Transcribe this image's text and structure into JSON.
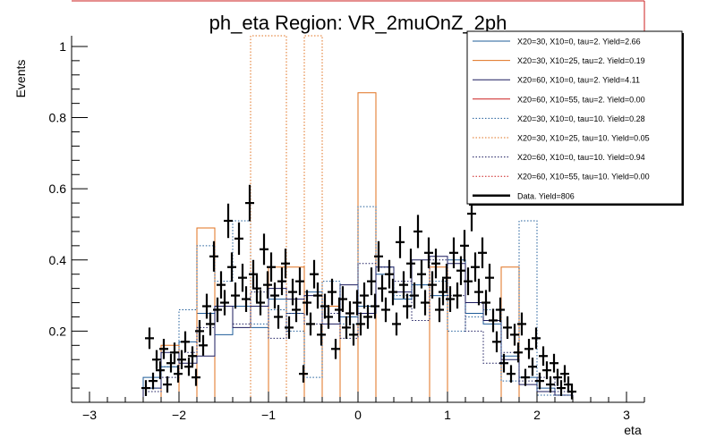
{
  "chart_data": {
    "type": "histogram",
    "title": "ph_eta Region: VR_2muOnZ_2ph",
    "xlabel": "eta",
    "ylabel": "Events",
    "xlim": [
      -3.2,
      3.2
    ],
    "ylim": [
      0,
      1.03
    ],
    "x_ticks": [
      "−3",
      "−2",
      "−1",
      "0",
      "1",
      "2",
      "3"
    ],
    "x_tick_values": [
      -3,
      -2,
      -1,
      0,
      1,
      2,
      3
    ],
    "y_ticks": [
      "0.2",
      "0.4",
      "0.6",
      "0.8",
      "1"
    ],
    "y_tick_values": [
      0.2,
      0.4,
      0.6,
      0.8,
      1
    ],
    "bin_edges": [
      -2.4,
      -2.2,
      -2.0,
      -1.8,
      -1.6,
      -1.4,
      -1.2,
      -1.0,
      -0.8,
      -0.6,
      -0.4,
      -0.2,
      0.0,
      0.2,
      0.4,
      0.6,
      0.8,
      1.0,
      1.2,
      1.4,
      1.6,
      1.8,
      2.0,
      2.2,
      2.4
    ],
    "legend_position": "top-right",
    "series": [
      {
        "name": "X20=30, X10=0, tau=2. Yield=2.66",
        "color": "#1f5c99",
        "dash": "solid",
        "values": [
          0.07,
          0.1,
          0.17,
          0.25,
          0.19,
          0.27,
          0.21,
          0.29,
          0.25,
          0.31,
          0.27,
          0.24,
          0.27,
          0.36,
          0.29,
          0.33,
          0.3,
          0.4,
          0.25,
          0.22,
          0.13,
          0.07,
          0.04,
          0.02
        ]
      },
      {
        "name": "X20=30, X10=25, tau=2. Yield=0.19",
        "color": "#e0701e",
        "dash": "solid",
        "values": [
          0.0,
          0.16,
          0.0,
          0.49,
          0.0,
          0.0,
          0.0,
          0.38,
          0.38,
          0.0,
          0.27,
          0.0,
          0.87,
          0.0,
          0.0,
          0.0,
          0.38,
          0.0,
          0.0,
          0.0,
          0.38,
          0.0,
          0.0,
          0.0
        ]
      },
      {
        "name": "X20=60, X10=0, tau=2. Yield=4.11",
        "color": "#1a1a5e",
        "dash": "solid",
        "values": [
          0.04,
          0.14,
          0.11,
          0.13,
          0.27,
          0.21,
          0.27,
          0.32,
          0.29,
          0.3,
          0.22,
          0.33,
          0.25,
          0.38,
          0.31,
          0.4,
          0.41,
          0.39,
          0.28,
          0.23,
          0.12,
          0.05,
          0.03,
          0.02
        ]
      },
      {
        "name": "X20=60, X10=55, tau=2. Yield=0.00",
        "color": "#cc1f1f",
        "dash": "solid",
        "values": [
          0,
          0,
          0,
          0,
          0,
          0,
          0,
          0,
          0,
          0,
          0,
          0,
          0,
          0,
          0,
          0,
          0,
          0,
          0,
          0,
          0,
          0,
          0,
          0
        ]
      },
      {
        "name": "X20=30, X10=0, tau=10. Yield=0.28",
        "color": "#1f5c99",
        "dash": "dotted",
        "values": [
          0.04,
          0.1,
          0.26,
          0.44,
          0.34,
          0.51,
          0.22,
          0.26,
          0.2,
          0.07,
          0.34,
          0.22,
          0.55,
          0.38,
          0.3,
          0.33,
          0.34,
          0.2,
          0.24,
          0.26,
          0.06,
          0.51,
          0.02,
          0.02
        ]
      },
      {
        "name": "X20=30, X10=25, tau=10. Yield=0.05",
        "color": "#e0701e",
        "dash": "dotted",
        "values": [
          0.0,
          0.0,
          0.0,
          0.0,
          0.0,
          0.0,
          1.03,
          1.03,
          0.0,
          1.03,
          0.0,
          0.0,
          0.0,
          0.0,
          0.0,
          0.0,
          0.0,
          0.0,
          0.0,
          0.0,
          0.0,
          0.0,
          0.0,
          0.0
        ]
      },
      {
        "name": "X20=60, X10=0, tau=10. Yield=0.94",
        "color": "#1a1a5e",
        "dash": "dotted",
        "values": [
          0.03,
          0.07,
          0.14,
          0.21,
          0.27,
          0.22,
          0.31,
          0.18,
          0.25,
          0.22,
          0.25,
          0.18,
          0.39,
          0.38,
          0.34,
          0.23,
          0.4,
          0.3,
          0.2,
          0.11,
          0.14,
          0.06,
          0.07,
          0.03
        ]
      },
      {
        "name": "X20=60, X10=55, tau=10. Yield=0.00",
        "color": "#cc1f1f",
        "dash": "dotted",
        "values": [
          0,
          0,
          0,
          0,
          0,
          0,
          0,
          0,
          0,
          0,
          0,
          0,
          0,
          0,
          0,
          0,
          0,
          0,
          0,
          0,
          0,
          0,
          0,
          0
        ]
      },
      {
        "name": "Data. Yield=806",
        "color": "#000000",
        "dash": "solid",
        "type": "points",
        "points": [
          [
            -2.37,
            0.04
          ],
          [
            -2.33,
            0.18
          ],
          [
            -2.29,
            0.06
          ],
          [
            -2.25,
            0.12
          ],
          [
            -2.21,
            0.09
          ],
          [
            -2.17,
            0.15
          ],
          [
            -2.13,
            0.05
          ],
          [
            -2.09,
            0.11
          ],
          [
            -2.05,
            0.14
          ],
          [
            -2.01,
            0.08
          ],
          [
            -1.97,
            0.12
          ],
          [
            -1.93,
            0.17
          ],
          [
            -1.89,
            0.1
          ],
          [
            -1.85,
            0.13
          ],
          [
            -1.81,
            0.07
          ],
          [
            -1.77,
            0.2
          ],
          [
            -1.73,
            0.16
          ],
          [
            -1.69,
            0.27
          ],
          [
            -1.65,
            0.22
          ],
          [
            -1.61,
            0.41
          ],
          [
            -1.57,
            0.26
          ],
          [
            -1.53,
            0.33
          ],
          [
            -1.49,
            0.28
          ],
          [
            -1.45,
            0.51
          ],
          [
            -1.41,
            0.38
          ],
          [
            -1.37,
            0.3
          ],
          [
            -1.33,
            0.46
          ],
          [
            -1.29,
            0.35
          ],
          [
            -1.25,
            0.29
          ],
          [
            -1.21,
            0.56
          ],
          [
            -1.17,
            0.36
          ],
          [
            -1.13,
            0.32
          ],
          [
            -1.09,
            0.28
          ],
          [
            -1.05,
            0.43
          ],
          [
            -1.01,
            0.33
          ],
          [
            -0.97,
            0.38
          ],
          [
            -0.93,
            0.3
          ],
          [
            -0.89,
            0.24
          ],
          [
            -0.85,
            0.34
          ],
          [
            -0.81,
            0.39
          ],
          [
            -0.77,
            0.21
          ],
          [
            -0.73,
            0.31
          ],
          [
            -0.69,
            0.26
          ],
          [
            -0.65,
            0.34
          ],
          [
            -0.61,
            0.08
          ],
          [
            -0.57,
            0.28
          ],
          [
            -0.53,
            0.22
          ],
          [
            -0.49,
            0.36
          ],
          [
            -0.45,
            0.3
          ],
          [
            -0.41,
            0.19
          ],
          [
            -0.37,
            0.27
          ],
          [
            -0.33,
            0.24
          ],
          [
            -0.29,
            0.31
          ],
          [
            -0.25,
            0.15
          ],
          [
            -0.21,
            0.26
          ],
          [
            -0.17,
            0.29
          ],
          [
            -0.13,
            0.21
          ],
          [
            -0.09,
            0.25
          ],
          [
            -0.05,
            0.19
          ],
          [
            -0.01,
            0.28
          ],
          [
            0.03,
            0.22
          ],
          [
            0.07,
            0.3
          ],
          [
            0.11,
            0.24
          ],
          [
            0.15,
            0.34
          ],
          [
            0.19,
            0.27
          ],
          [
            0.23,
            0.41
          ],
          [
            0.27,
            0.32
          ],
          [
            0.31,
            0.26
          ],
          [
            0.35,
            0.36
          ],
          [
            0.39,
            0.31
          ],
          [
            0.43,
            0.22
          ],
          [
            0.47,
            0.45
          ],
          [
            0.51,
            0.33
          ],
          [
            0.55,
            0.27
          ],
          [
            0.59,
            0.39
          ],
          [
            0.63,
            0.3
          ],
          [
            0.67,
            0.48
          ],
          [
            0.71,
            0.36
          ],
          [
            0.75,
            0.28
          ],
          [
            0.79,
            0.42
          ],
          [
            0.83,
            0.33
          ],
          [
            0.87,
            0.39
          ],
          [
            0.91,
            0.26
          ],
          [
            0.95,
            0.31
          ],
          [
            0.99,
            0.35
          ],
          [
            1.03,
            0.29
          ],
          [
            1.07,
            0.42
          ],
          [
            1.11,
            0.3
          ],
          [
            1.15,
            0.37
          ],
          [
            1.19,
            0.44
          ],
          [
            1.23,
            0.34
          ],
          [
            1.27,
            0.53
          ],
          [
            1.31,
            0.38
          ],
          [
            1.35,
            0.31
          ],
          [
            1.39,
            0.42
          ],
          [
            1.43,
            0.28
          ],
          [
            1.47,
            0.35
          ],
          [
            1.51,
            0.23
          ],
          [
            1.55,
            0.17
          ],
          [
            1.59,
            0.26
          ],
          [
            1.63,
            0.11
          ],
          [
            1.67,
            0.21
          ],
          [
            1.71,
            0.08
          ],
          [
            1.75,
            0.19
          ],
          [
            1.79,
            0.14
          ],
          [
            1.83,
            0.22
          ],
          [
            1.87,
            0.07
          ],
          [
            1.91,
            0.15
          ],
          [
            1.95,
            0.1
          ],
          [
            1.99,
            0.18
          ],
          [
            2.03,
            0.06
          ],
          [
            2.07,
            0.13
          ],
          [
            2.11,
            0.09
          ],
          [
            2.15,
            0.05
          ],
          [
            2.19,
            0.11
          ],
          [
            2.23,
            0.07
          ],
          [
            2.27,
            0.04
          ],
          [
            2.31,
            0.08
          ],
          [
            2.35,
            0.05
          ],
          [
            2.39,
            0.03
          ]
        ]
      }
    ]
  }
}
